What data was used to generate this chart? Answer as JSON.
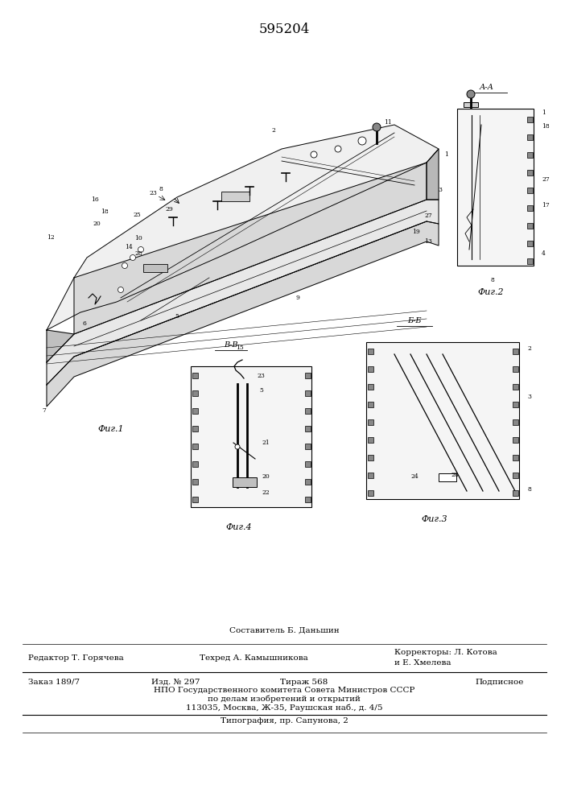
{
  "patent_number": "595204",
  "background_color": "#ffffff",
  "fig_width": 7.07,
  "fig_height": 10.0,
  "dpi": 100,
  "sostavitel_text": "Составитель Б. Даньшин",
  "redaktor_text": "Редактор Т. Горячева",
  "tekhred_text": "Техред А. Камышникова",
  "korrektory_text": "Корректоры: Л. Котова",
  "korrektory2_text": "и Е. Хмелева",
  "zakaz_text": "Заказ 189/7",
  "izd_text": "Изд. № 297",
  "tirazh_text": "Тираж 568",
  "podpisnoe_text": "Подписное",
  "npo_line1": "НПО Государственного комитета Совета Министров СССР",
  "npo_line2": "по делам изобретений и открытий",
  "npo_line3": "113035, Москва, Ж-35, Раушская наб., д. 4/5",
  "tipografiya_text": "Типография, пр. Сапунова, 2",
  "footer_font_size": 7.5
}
